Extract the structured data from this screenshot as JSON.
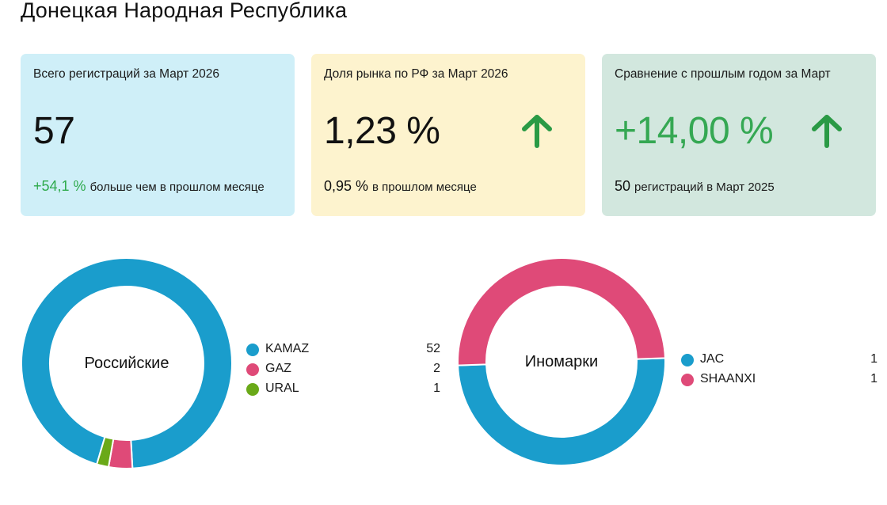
{
  "page": {
    "title": "Донецкая Народная Республика"
  },
  "cards": [
    {
      "label": "Всего регистраций за Март 2026",
      "value": "57",
      "foot_value": "+54,1 %",
      "foot_text": "больше чем в прошлом месяце",
      "background": "#cfeff8"
    },
    {
      "label": "Доля рынка по РФ за Март 2026",
      "value": "1,23 %",
      "foot_value": "0,95 %",
      "foot_text": "в прошлом месяце",
      "arrow": "arrow-up-icon",
      "background": "#fdf3ce"
    },
    {
      "label": "Сравнение с прошлым годом за Март",
      "value": "+14,00 %",
      "foot_value": "50",
      "foot_text": "регистраций в Март 2025",
      "arrow": "arrow-up-icon",
      "background": "#d2e7de"
    }
  ],
  "colors": {
    "accent_green": "#35a853",
    "arrow_green": "#2a9a45"
  },
  "chart_data": [
    {
      "type": "pie",
      "center_label": "Российские",
      "categories": [
        "KAMAZ",
        "GAZ",
        "URAL"
      ],
      "values": [
        52,
        2,
        1
      ],
      "colors": [
        "#1a9dcc",
        "#df4a78",
        "#6aa918"
      ]
    },
    {
      "type": "pie",
      "center_label": "Иномарки",
      "categories": [
        "JAC",
        "SHAANXI"
      ],
      "values": [
        1,
        1
      ],
      "colors": [
        "#1a9dcc",
        "#df4a78"
      ]
    }
  ]
}
